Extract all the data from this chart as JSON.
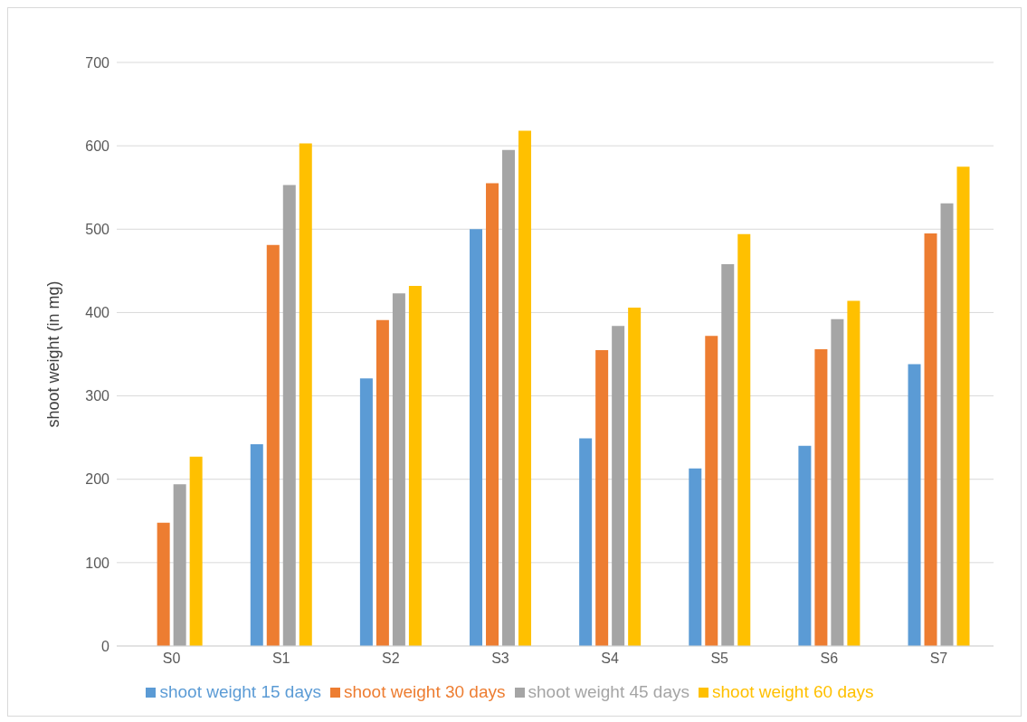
{
  "chart_data": {
    "type": "bar",
    "ylabel": "shoot weight (in mg)",
    "categories": [
      "S0",
      "S1",
      "S2",
      "S3",
      "S4",
      "S5",
      "S6",
      "S7"
    ],
    "series": [
      {
        "name": "shoot weight 15 days",
        "color": "#5b9bd5",
        "values": [
          0,
          242,
          321,
          500,
          249,
          213,
          240,
          338
        ]
      },
      {
        "name": "shoot weight 30 days",
        "color": "#ed7d31",
        "values": [
          148,
          481,
          391,
          555,
          355,
          372,
          356,
          495
        ]
      },
      {
        "name": "shoot weight 45 days",
        "color": "#a5a5a5",
        "values": [
          194,
          553,
          423,
          595,
          384,
          458,
          392,
          531
        ]
      },
      {
        "name": "shoot weight 60 days",
        "color": "#ffc000",
        "values": [
          227,
          603,
          432,
          618,
          406,
          494,
          414,
          575
        ]
      }
    ],
    "ylim": [
      0,
      700
    ],
    "yticks": [
      0,
      100,
      200,
      300,
      400,
      500,
      600,
      700
    ],
    "grid": "y",
    "legend": "bottom"
  }
}
